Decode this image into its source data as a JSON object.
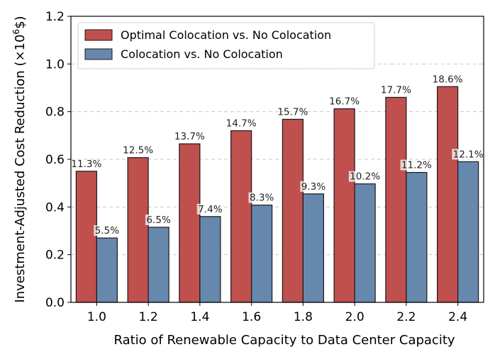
{
  "chart_data": {
    "type": "bar",
    "xlabel": "Ratio of Renewable Capacity to Data Center Capacity",
    "ylabel_prefix": "Investment-Adjusted Cost Reduction (×10",
    "ylabel_exp": "6",
    "ylabel_suffix": "$)",
    "ylim": [
      0,
      1.2
    ],
    "yticks": [
      "0.0",
      "0.2",
      "0.4",
      "0.6",
      "0.8",
      "1.0",
      "1.2"
    ],
    "grid": "horizontal dashed",
    "legend_position": "top-left",
    "categories": [
      "1.0",
      "1.2",
      "1.4",
      "1.6",
      "1.8",
      "2.0",
      "2.2",
      "2.4"
    ],
    "series": [
      {
        "name": "Optimal Colocation vs. No Colocation",
        "color": "#c0504d",
        "values": [
          0.55,
          0.607,
          0.665,
          0.72,
          0.768,
          0.812,
          0.86,
          0.905
        ],
        "labels": [
          "11.3%",
          "12.5%",
          "13.7%",
          "14.7%",
          "15.7%",
          "16.7%",
          "17.7%",
          "18.6%"
        ]
      },
      {
        "name": "Colocation vs. No Colocation",
        "color": "#6688ad",
        "values": [
          0.27,
          0.315,
          0.36,
          0.408,
          0.455,
          0.497,
          0.545,
          0.59
        ],
        "labels": [
          "5.5%",
          "6.5%",
          "7.4%",
          "8.3%",
          "9.3%",
          "10.2%",
          "11.2%",
          "12.1%"
        ]
      }
    ]
  }
}
